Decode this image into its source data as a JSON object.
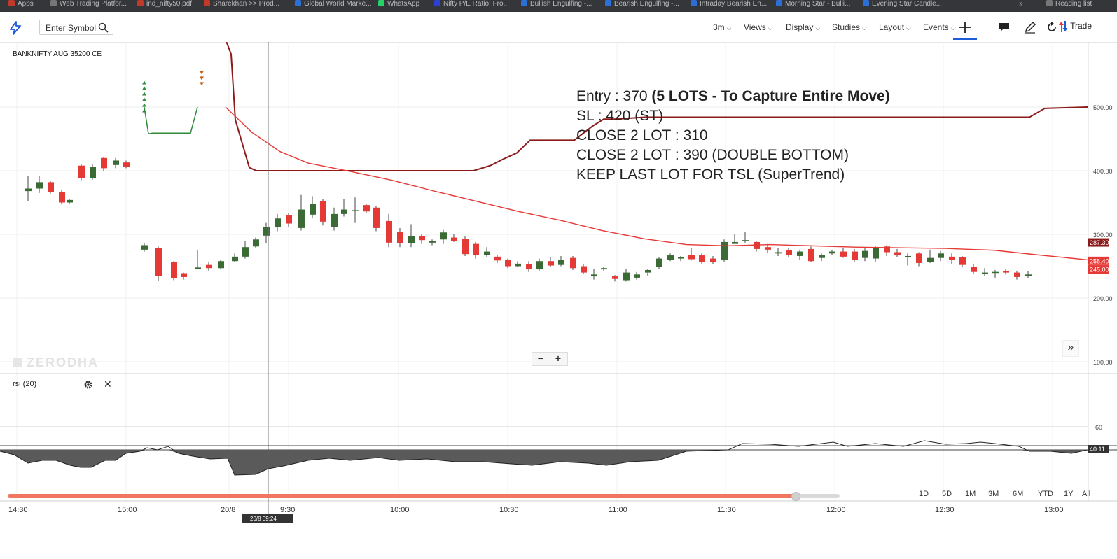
{
  "bookmarks": [
    {
      "label": "Apps",
      "color": "#c0392b"
    },
    {
      "label": "Web Trading Platfor...",
      "color": "#777777"
    },
    {
      "label": "ind_nifty50.pdf",
      "color": "#c0392b"
    },
    {
      "label": "Sharekhan >> Prod...",
      "color": "#c0392b"
    },
    {
      "label": "Global World Marke...",
      "color": "#2c6fd6"
    },
    {
      "label": "WhatsApp",
      "color": "#25d366"
    },
    {
      "label": "Nifty P/E Ratio: Fro...",
      "color": "#2c3fd6"
    },
    {
      "label": "Bullish Engulfing -...",
      "color": "#2c6fd6"
    },
    {
      "label": "Bearish Engulfing -...",
      "color": "#2c6fd6"
    },
    {
      "label": "Intraday Bearish En...",
      "color": "#2c6fd6"
    },
    {
      "label": "Morning Star - Bulli...",
      "color": "#2c6fd6"
    },
    {
      "label": "Evening Star Candle...",
      "color": "#2c6fd6"
    },
    {
      "label": "»",
      "color": "#35363a"
    },
    {
      "label": "Reading list",
      "color": "#777777"
    }
  ],
  "toolbar": {
    "symbol_placeholder": "Enter Symbol",
    "interval": "3m",
    "menus": [
      "Views",
      "Display",
      "Studies",
      "Layout",
      "Events"
    ],
    "trade_label": "Trade",
    "accent": "#1e5bd6"
  },
  "chart": {
    "instrument": "BANKNIFTY AUG 35200 CE",
    "watermark": "ZERODHA",
    "note": {
      "line1_plain": "Entry : 370 ",
      "line1_bold": "(5 LOTS - To Capture Entire Move)",
      "line2": "SL : 420 (ST)",
      "line3": "CLOSE 2 LOT : 310",
      "line4": "CLOSE 2 LOT : 390 (DOUBLE BOTTOM)",
      "line5": "KEEP LAST LOT FOR TSL (SuperTrend)"
    },
    "zoom_minus": "−",
    "zoom_plus": "+",
    "scroll_label": "»",
    "price_ticks": [
      "500.00",
      "400.00",
      "300.00",
      "200.00",
      "100.00"
    ],
    "price_tags": [
      {
        "label": "287.30",
        "color": "#8b1a1a"
      },
      {
        "label": "258.40",
        "color": "#e53935"
      },
      {
        "label": "245.00",
        "color": "#e53935"
      }
    ],
    "rsi": {
      "label": "rsi (20)",
      "tick": "60",
      "tag": "40.11"
    },
    "time_ticks": [
      "14:30",
      "15:00",
      "20/8",
      "9:30",
      "10:00",
      "10:30",
      "11:00",
      "11:30",
      "12:00",
      "12:30",
      "13:00"
    ],
    "crosshair_time": "20/8 09:24",
    "up_color": "#3a6b35",
    "down_color": "#e53935",
    "supertrend_color": "#8b1a1a",
    "ema_color": "#e53935"
  },
  "ranges": [
    "1D",
    "5D",
    "1M",
    "3M",
    "6M",
    "YTD",
    "1Y",
    "All"
  ]
}
